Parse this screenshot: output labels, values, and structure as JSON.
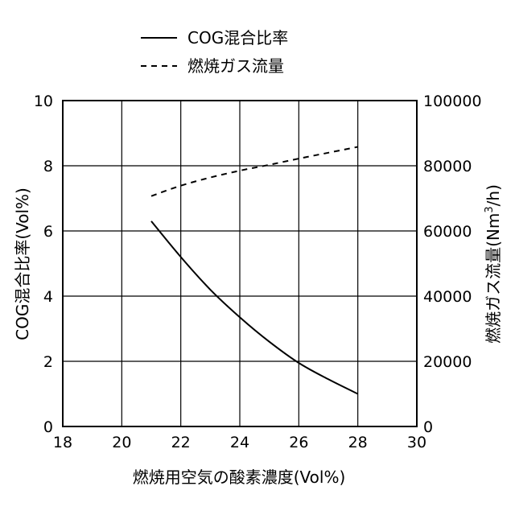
{
  "chart_data": {
    "type": "line",
    "xlabel": "燃焼用空気の酸素濃度(Vol%)",
    "ylabel_left": "COG混合比率(Vol%)",
    "ylabel_right_main": "燃焼ガス流量(Nm",
    "ylabel_right_sup": "3",
    "ylabel_right_end": "/h)",
    "xlim": [
      18,
      30
    ],
    "ylim_left": [
      0,
      10
    ],
    "ylim_right": [
      0,
      100000
    ],
    "x_ticks": [
      "18",
      "20",
      "22",
      "24",
      "26",
      "28",
      "30"
    ],
    "y_left_ticks": [
      "0",
      "2",
      "4",
      "6",
      "8",
      "10"
    ],
    "y_right_ticks": [
      "0",
      "20000",
      "40000",
      "60000",
      "80000",
      "100000"
    ],
    "grid": true,
    "legend_position": "top",
    "series": [
      {
        "name": "COG混合比率",
        "axis": "left",
        "style": "solid",
        "x": [
          21,
          22,
          23,
          24,
          25,
          26,
          27,
          28
        ],
        "y": [
          6.3,
          5.2,
          4.2,
          3.35,
          2.6,
          1.95,
          1.45,
          1.0
        ]
      },
      {
        "name": "燃焼ガス流量",
        "axis": "right",
        "style": "dashed",
        "x": [
          21,
          22,
          23,
          24,
          25,
          26,
          27,
          28
        ],
        "y": [
          70700,
          73900,
          76400,
          78500,
          80300,
          82200,
          84000,
          85800
        ]
      }
    ]
  }
}
